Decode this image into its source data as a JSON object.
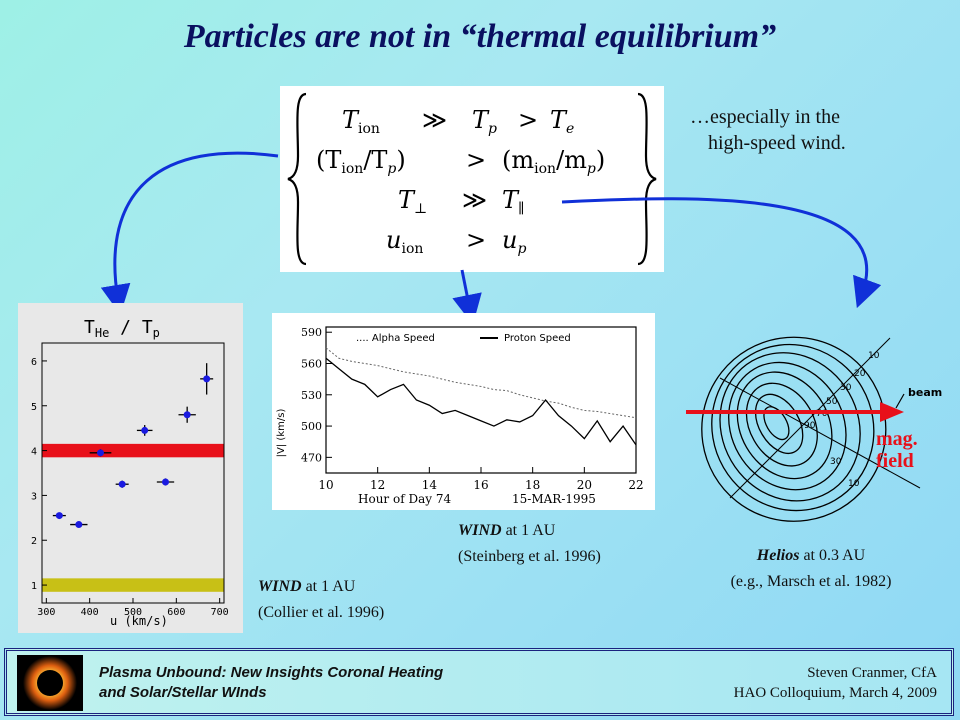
{
  "title": "Particles are not in “thermal equilibrium”",
  "equations": {
    "line1": {
      "lhs": "T",
      "lhs_sub": "ion",
      "op": "≫",
      "mid": "T",
      "mid_sub": "p",
      "op2": ">",
      "rhs": "T",
      "rhs_sub": "e"
    },
    "line2": {
      "lhs": "(T",
      "lhs_sub": "ion",
      "lhs_tail": "/T",
      "lhs_sub2": "p",
      "lhs_close": ")",
      "op": ">",
      "rhs": "(m",
      "rhs_sub": "ion",
      "rhs_tail": "/m",
      "rhs_sub2": "p",
      "rhs_close": ")"
    },
    "line3": {
      "lhs": "T",
      "lhs_sub": "⊥",
      "op": "≫",
      "rhs": "T",
      "rhs_sub": "∥"
    },
    "line4": {
      "lhs": "u",
      "lhs_sub": "ion",
      "op": ">",
      "rhs": "u",
      "rhs_sub": "p"
    }
  },
  "note": {
    "line1": "…especially in the",
    "line2": "high-speed wind."
  },
  "left_chart": {
    "title_main": "T",
    "title_sub1": "He",
    "title_sep": " / ",
    "title_t2": "T",
    "title_sub2": "p",
    "xlabel": "u (km/s)"
  },
  "chart_data": [
    {
      "type": "scatter",
      "title": "T_He / T_p",
      "xlabel": "u (km/s)",
      "ylabel": "",
      "xlim": [
        290,
        710
      ],
      "ylim": [
        0.6,
        6.4
      ],
      "xticks": [
        300,
        400,
        500,
        600,
        700
      ],
      "yticks": [
        1,
        2,
        3,
        4,
        5,
        6
      ],
      "bands": [
        {
          "color": "#e8101a",
          "y": [
            3.85,
            4.15
          ]
        },
        {
          "color": "#c8c016",
          "y": [
            0.85,
            1.15
          ]
        }
      ],
      "points": [
        {
          "x": 330,
          "y": 2.55,
          "xerr": 15,
          "yerr": 0
        },
        {
          "x": 375,
          "y": 2.35,
          "xerr": 20,
          "yerr": 0
        },
        {
          "x": 425,
          "y": 3.95,
          "xerr": 25,
          "yerr": 0.08
        },
        {
          "x": 475,
          "y": 3.25,
          "xerr": 15,
          "yerr": 0.08
        },
        {
          "x": 527,
          "y": 4.45,
          "xerr": 18,
          "yerr": 0.12
        },
        {
          "x": 575,
          "y": 3.3,
          "xerr": 20,
          "yerr": 0.08
        },
        {
          "x": 625,
          "y": 4.8,
          "xerr": 20,
          "yerr": 0.18
        },
        {
          "x": 670,
          "y": 5.6,
          "xerr": 15,
          "yerr": 0.35
        }
      ]
    },
    {
      "type": "line",
      "title": "",
      "xlabel": "Hour of Day 74",
      "xlabel2": "15-MAR-1995",
      "ylabel": "|V| (km/s)",
      "xlim": [
        10,
        22
      ],
      "ylim": [
        455,
        595
      ],
      "xticks": [
        10,
        12,
        14,
        16,
        18,
        20,
        22
      ],
      "yticks": [
        470,
        500,
        530,
        560,
        590
      ],
      "series": [
        {
          "name": ".... Alpha Speed",
          "x": [
            10,
            10.5,
            11,
            11.5,
            12,
            12.5,
            13,
            13.5,
            14,
            14.5,
            15,
            15.5,
            16,
            16.5,
            17,
            17.5,
            18,
            18.5,
            19,
            19.5,
            20,
            20.5,
            21,
            21.5,
            22
          ],
          "values": [
            575,
            565,
            562,
            560,
            558,
            555,
            552,
            550,
            548,
            545,
            542,
            540,
            538,
            535,
            534,
            530,
            527,
            524,
            522,
            518,
            515,
            514,
            512,
            510,
            508
          ]
        },
        {
          "name": "Proton Speed",
          "x": [
            10,
            10.5,
            11,
            11.5,
            12,
            12.5,
            13,
            13.5,
            14,
            14.5,
            15,
            15.5,
            16,
            16.5,
            17,
            17.5,
            18,
            18.5,
            19,
            19.5,
            20,
            20.5,
            21,
            21.5,
            22
          ],
          "values": [
            565,
            555,
            545,
            540,
            528,
            535,
            540,
            525,
            520,
            512,
            515,
            510,
            505,
            500,
            506,
            504,
            510,
            525,
            510,
            500,
            488,
            505,
            485,
            500,
            482
          ]
        }
      ]
    }
  ],
  "middle_chart": {
    "legend_alpha": ".... Alpha Speed",
    "legend_proton": "Proton Speed",
    "ylabel": "|V| (km/s)",
    "xlabel": "Hour of Day 74",
    "date": "15-MAR-1995"
  },
  "right_fig": {
    "beam_label": "beam",
    "contour_labels": [
      "10",
      "20",
      "30",
      "50",
      "70",
      "90",
      "30",
      "10"
    ]
  },
  "mag_field": {
    "line1": "mag.",
    "line2": "field"
  },
  "captions": {
    "wind1_name": "WIND",
    "wind1_rest": " at 1 AU",
    "wind1_ref": "(Steinberg et al. 1996)",
    "wind2_name": "WIND",
    "wind2_rest": " at 1 AU",
    "wind2_ref": "(Collier et al. 1996)",
    "helios_name": "Helios",
    "helios_rest": " at 0.3 AU",
    "helios_ref": "(e.g., Marsch et al. 1982)"
  },
  "footer": {
    "left_line1": "Plasma Unbound:  New Insights Coronal Heating",
    "left_line2": "and Solar/Stellar WInds",
    "right_line1": "Steven Cranmer,  CfA",
    "right_line2": "HAO Colloquium, March 4, 2009"
  },
  "colors": {
    "title": "#0a1060",
    "arrow": "#1030d8",
    "red": "#e8101a",
    "point": "#1a1ae0"
  }
}
